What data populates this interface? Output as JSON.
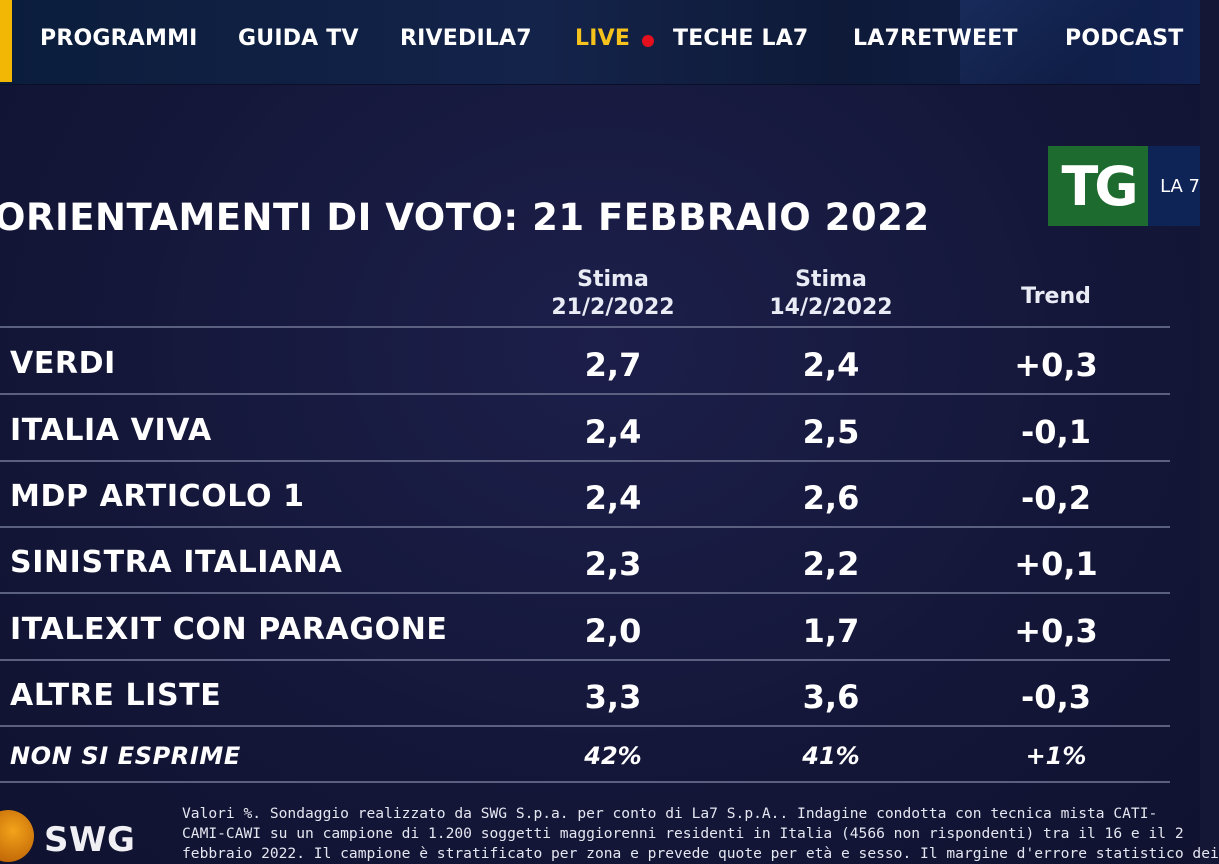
{
  "nav": {
    "items": [
      "PROGRAMMI",
      "GUIDA TV",
      "RIVEDILA7",
      "LIVE",
      "TECHE LA7",
      "LA7RETWEET",
      "PODCAST"
    ],
    "live_color": "#f6c21c",
    "live_dot_color": "#e4101e"
  },
  "logo": {
    "tg": "TG",
    "channel": "LA 7"
  },
  "title": "ORIENTAMENTI DI VOTO: 21 FEBBRAIO 2022",
  "table": {
    "columns": [
      {
        "line1": "Stima",
        "line2": "21/2/2022"
      },
      {
        "line1": "Stima",
        "line2": "14/2/2022"
      },
      {
        "line1": "Trend",
        "line2": ""
      }
    ],
    "rows": [
      {
        "party": "VERDI",
        "current": "2,7",
        "previous": "2,4",
        "trend": "+0,3"
      },
      {
        "party": "ITALIA VIVA",
        "current": "2,4",
        "previous": "2,5",
        "trend": "-0,1"
      },
      {
        "party": "MDP ARTICOLO 1",
        "current": "2,4",
        "previous": "2,6",
        "trend": "-0,2"
      },
      {
        "party": "SINISTRA ITALIANA",
        "current": "2,3",
        "previous": "2,2",
        "trend": "+0,1"
      },
      {
        "party": "ITALEXIT CON PARAGONE",
        "current": "2,0",
        "previous": "1,7",
        "trend": "+0,3"
      },
      {
        "party": "ALTRE LISTE",
        "current": "3,3",
        "previous": "3,6",
        "trend": "-0,3"
      },
      {
        "party": "NON SI ESPRIME",
        "current": "42%",
        "previous": "41%",
        "trend": "+1%"
      }
    ]
  },
  "footer": {
    "brand": "SWG",
    "note_lines": [
      "Valori %. Sondaggio realizzato da SWG S.p.a. per conto di La7 S.p.A.. Indagine condotta con tecnica mista CATI-",
      "CAMI-CAWI su un campione di 1.200 soggetti maggiorenni residenti in Italia (4566 non rispondenti) tra il 16 e il 2",
      "febbraio 2022. Il campione è stratificato per zona e prevede quote per età e sesso. Il margine d'errore statistico dei"
    ]
  }
}
